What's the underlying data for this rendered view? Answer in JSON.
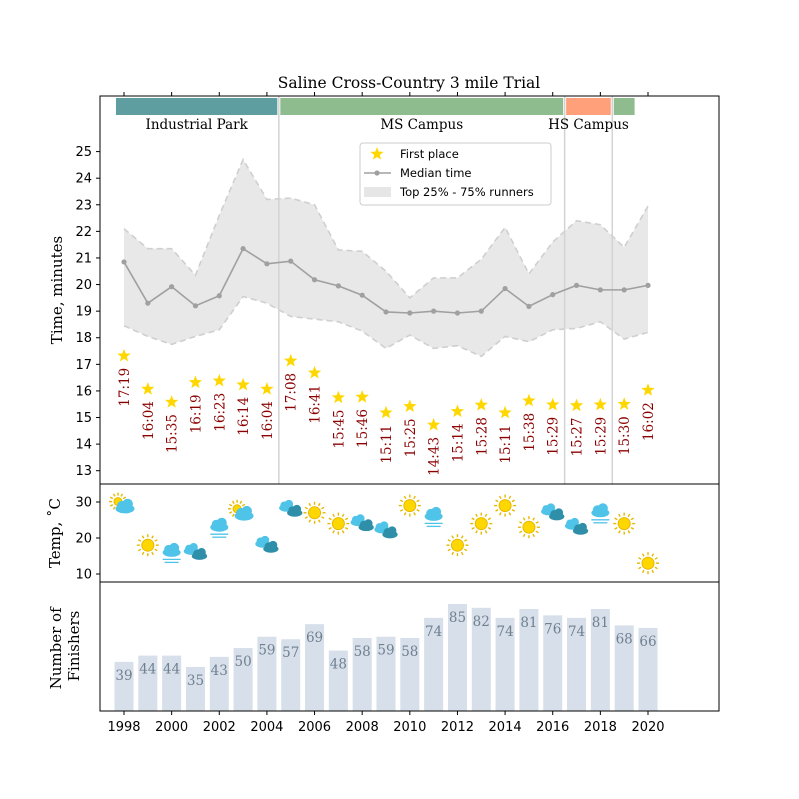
{
  "chart_data": [
    {
      "type": "line",
      "title": "Saline Cross-Country 3 mile Trial",
      "ylabel": "Time, minutes",
      "ylim": [
        12.5,
        26.0
      ],
      "yticks": [
        "13",
        "14",
        "15",
        "16",
        "17",
        "18",
        "19",
        "20",
        "21",
        "22",
        "23",
        "24",
        "25"
      ],
      "x": [
        1998,
        1999,
        2000,
        2001,
        2002,
        2003,
        2004,
        2005,
        2006,
        2007,
        2008,
        2009,
        2010,
        2011,
        2012,
        2013,
        2014,
        2015,
        2016,
        2017,
        2018,
        2019,
        2020
      ],
      "venues": [
        {
          "label": "Industrial Park",
          "start": 1997.6,
          "end": 2004.5,
          "color": "#5f9ea0",
          "show_label": true
        },
        {
          "label": "MS Campus",
          "start": 2004.5,
          "end": 2016.5,
          "color": "#8fbc8f",
          "show_label": true
        },
        {
          "label": "HS Campus",
          "start": 2016.5,
          "end": 2018.5,
          "color": "#ffa07a",
          "show_label": true
        },
        {
          "label": "",
          "start": 2018.5,
          "end": 2019.5,
          "color": "#8fbc8f",
          "show_label": false
        }
      ],
      "venue_dividers": [
        2004.5,
        2016.5,
        2018.5
      ],
      "legend": {
        "position": "upper-center",
        "entries": [
          "First place",
          "Median time",
          "Top 25% - 75% runners"
        ]
      },
      "series": [
        {
          "name": "Median time",
          "color": "#a0a0a0",
          "values": [
            20.85,
            19.3,
            19.92,
            19.2,
            19.58,
            21.35,
            20.78,
            20.88,
            20.18,
            19.95,
            19.6,
            18.97,
            18.93,
            19.0,
            18.93,
            19.0,
            19.85,
            19.18,
            19.62,
            19.97,
            19.8,
            19.8,
            19.97
          ]
        },
        {
          "name": "Top 25% - 75% runners",
          "color": "#e8e8e8",
          "q25": [
            18.45,
            18.05,
            17.75,
            18.05,
            18.3,
            19.55,
            19.3,
            18.8,
            18.7,
            18.6,
            18.25,
            17.6,
            18.1,
            17.6,
            17.7,
            17.3,
            18.05,
            17.85,
            18.3,
            18.35,
            18.6,
            17.95,
            18.2
          ],
          "q75": [
            22.1,
            21.35,
            21.35,
            20.35,
            22.6,
            24.7,
            23.2,
            23.25,
            23.0,
            21.3,
            21.25,
            20.5,
            19.5,
            20.25,
            20.25,
            20.95,
            22.15,
            20.4,
            21.6,
            22.4,
            22.25,
            21.4,
            22.95
          ]
        },
        {
          "name": "First place",
          "color": "#ffd700",
          "values": [
            17.32,
            16.07,
            15.58,
            16.32,
            16.38,
            16.23,
            16.07,
            17.13,
            16.68,
            15.75,
            15.77,
            15.18,
            15.42,
            14.72,
            15.23,
            15.47,
            15.18,
            15.63,
            15.48,
            15.45,
            15.48,
            15.5,
            16.03
          ],
          "labels": [
            "17:19",
            "16:04",
            "15:35",
            "16:19",
            "16:23",
            "16:14",
            "16:04",
            "17:08",
            "16:41",
            "15:45",
            "15:46",
            "15:11",
            "15:25",
            "14:43",
            "15:14",
            "15:28",
            "15:11",
            "15:38",
            "15:29",
            "15:27",
            "15:29",
            "15:30",
            "16:02"
          ],
          "label_color": "#8b0000"
        }
      ]
    },
    {
      "type": "scatter",
      "ylabel": "Temp, ˚C",
      "ylim": [
        7,
        33
      ],
      "yticks": [
        "10",
        "20",
        "30"
      ],
      "x": [
        1998,
        1999,
        2000,
        2001,
        2002,
        2003,
        2004,
        2005,
        2006,
        2007,
        2008,
        2009,
        2010,
        2011,
        2012,
        2013,
        2014,
        2015,
        2016,
        2017,
        2018,
        2019,
        2020
      ],
      "values": [
        29,
        18,
        16,
        16,
        23,
        27,
        18,
        28,
        27,
        24,
        24,
        22,
        29,
        26,
        18,
        24,
        29,
        23,
        27,
        23,
        27,
        24,
        13
      ],
      "weather": [
        "partly-cloudy-icon",
        "sun-icon",
        "fog-icon",
        "clouds-icon",
        "fog-icon",
        "partly-cloudy-icon",
        "clouds-icon",
        "clouds-icon",
        "sun-icon",
        "sun-icon",
        "clouds-icon",
        "clouds-icon",
        "sun-icon",
        "fog-icon",
        "sun-icon",
        "sun-icon",
        "sun-icon",
        "sun-icon",
        "clouds-icon",
        "clouds-icon",
        "fog-icon",
        "sun-icon",
        "sun-icon"
      ]
    },
    {
      "type": "bar",
      "ylabel": "Number of\nFinishers",
      "ylim": [
        0,
        100
      ],
      "categories": [
        1998,
        1999,
        2000,
        2001,
        2002,
        2003,
        2004,
        2005,
        2006,
        2007,
        2008,
        2009,
        2010,
        2011,
        2012,
        2013,
        2014,
        2015,
        2016,
        2017,
        2018,
        2019,
        2020
      ],
      "values": [
        39,
        44,
        44,
        35,
        43,
        50,
        59,
        57,
        69,
        48,
        58,
        59,
        58,
        74,
        85,
        82,
        74,
        81,
        76,
        74,
        81,
        68,
        66
      ],
      "color": "#d6dfea",
      "label_color": "#708090",
      "xticks": [
        "1998",
        "2000",
        "2002",
        "2004",
        "2006",
        "2008",
        "2010",
        "2012",
        "2014",
        "2016",
        "2018",
        "2020"
      ]
    }
  ]
}
